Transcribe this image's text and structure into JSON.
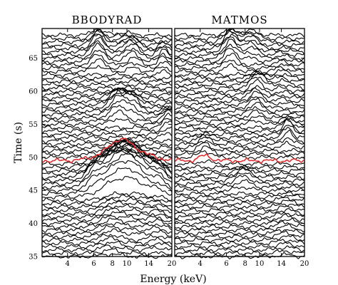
{
  "chart_data": {
    "type": "line",
    "ylabel": "Time (s)",
    "xlabel": "Energy (keV)",
    "xscale": "log",
    "xlim": [
      2.7,
      20
    ],
    "ylim": [
      35,
      69.5
    ],
    "xticks": [
      4,
      6,
      8,
      10,
      14,
      20
    ],
    "xtick_labels": [
      "4",
      "6",
      "8",
      "10",
      "14",
      "20"
    ],
    "yticks": [
      35,
      40,
      45,
      50,
      55,
      60,
      65
    ],
    "ytick_labels": [
      "35",
      "40",
      "45",
      "50",
      "55",
      "60",
      "65"
    ],
    "trace_spacing_s": 0.5,
    "trace_start_s": 35,
    "trace_count": 68,
    "highlight_time_s": 49.5,
    "highlight_color": "#e03030",
    "line_color": "#000000",
    "grid": false,
    "panels": [
      {
        "title": "BBODYRAD",
        "features": [
          {
            "t0": 35.0,
            "t1": 45.0,
            "energy": 7.8,
            "width": 0.06,
            "amp": 0.9
          },
          {
            "t0": 36.0,
            "t1": 44.0,
            "energy": 16.0,
            "width": 0.05,
            "amp": 0.8
          },
          {
            "t0": 38.0,
            "t1": 48.0,
            "energy": 11.0,
            "width": 0.08,
            "amp": 1.0
          },
          {
            "t0": 44.0,
            "t1": 49.6,
            "energy": 9.5,
            "width": 0.13,
            "amp": 4.6
          },
          {
            "t0": 44.5,
            "t1": 47.5,
            "energy": 6.0,
            "width": 0.04,
            "amp": 1.3
          },
          {
            "t0": 44.0,
            "t1": 48.0,
            "energy": 16.5,
            "width": 0.05,
            "amp": 1.4
          },
          {
            "t0": 49.0,
            "t1": 50.5,
            "energy": 9.0,
            "width": 0.06,
            "amp": 1.2
          },
          {
            "t0": 55.0,
            "t1": 59.5,
            "energy": 8.8,
            "width": 0.05,
            "amp": 2.1
          },
          {
            "t0": 56.0,
            "t1": 59.0,
            "energy": 11.0,
            "width": 0.04,
            "amp": 1.4
          },
          {
            "t0": 53.0,
            "t1": 57.0,
            "energy": 19.0,
            "width": 0.035,
            "amp": 1.5
          },
          {
            "t0": 63.0,
            "t1": 68.5,
            "energy": 6.4,
            "width": 0.04,
            "amp": 2.0
          },
          {
            "t0": 63.0,
            "t1": 67.5,
            "energy": 11.0,
            "width": 0.04,
            "amp": 1.3
          },
          {
            "t0": 62.5,
            "t1": 67.0,
            "energy": 17.5,
            "width": 0.03,
            "amp": 1.2
          },
          {
            "t0": 64.5,
            "t1": 69.0,
            "energy": 9.5,
            "width": 0.05,
            "amp": 0.6
          }
        ]
      },
      {
        "title": "MATMOS",
        "features": [
          {
            "t0": 35.0,
            "t1": 44.0,
            "energy": 15.0,
            "width": 0.05,
            "amp": 0.6
          },
          {
            "t0": 45.0,
            "t1": 48.0,
            "energy": 7.8,
            "width": 0.05,
            "amp": 1.2
          },
          {
            "t0": 49.0,
            "t1": 53.0,
            "energy": 4.3,
            "width": 0.04,
            "amp": 1.1
          },
          {
            "t0": 51.5,
            "t1": 55.5,
            "energy": 15.5,
            "width": 0.03,
            "amp": 1.5
          },
          {
            "t0": 55.0,
            "t1": 62.0,
            "energy": 9.5,
            "width": 0.04,
            "amp": 1.3
          },
          {
            "t0": 60.0,
            "t1": 62.0,
            "energy": 10.0,
            "width": 0.05,
            "amp": 0.8
          },
          {
            "t0": 63.0,
            "t1": 68.5,
            "energy": 6.4,
            "width": 0.04,
            "amp": 2.1
          },
          {
            "t0": 64.5,
            "t1": 68.7,
            "energy": 8.7,
            "width": 0.045,
            "amp": 1.3
          },
          {
            "t0": 58.0,
            "t1": 66.0,
            "energy": 14.0,
            "width": 0.04,
            "amp": 0.6
          }
        ]
      }
    ]
  }
}
